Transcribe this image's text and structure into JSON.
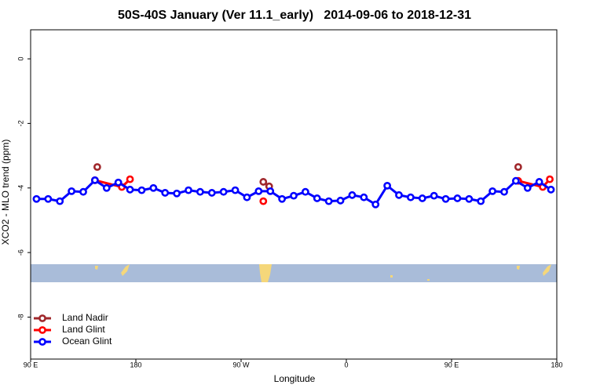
{
  "chart_data": {
    "type": "line",
    "title": "50S-40S January (Ver 11.1_early)   2014-09-06 to 2018-12-31",
    "x_label": "Longitude",
    "y_label": "XCO2 - MLO trend (ppm)",
    "xlim": [
      90,
      540
    ],
    "ylim": [
      -9.3,
      0.9
    ],
    "xticks": [
      {
        "value": 90,
        "label": "90 E"
      },
      180,
      {
        "value": 270,
        "label": "90 W"
      },
      {
        "value": 360,
        "label": "0"
      },
      {
        "value": 450,
        "label": "90 E"
      },
      {
        "value": 540,
        "label": "180"
      }
    ],
    "yticks": [
      0,
      -2,
      -4,
      -6,
      -8
    ],
    "legend_position": "bottomleft",
    "series": [
      {
        "name": "Land Nadir",
        "color": "#a0282c",
        "x": [
          147,
          200,
          289,
          294,
          450,
          507
        ],
        "values": [
          -3.35,
          null,
          -3.81,
          -3.95,
          null,
          -3.35
        ]
      },
      {
        "name": "Land Glint",
        "color": "#ff0000",
        "x": [
          145,
          168,
          175,
          230,
          289,
          400,
          507,
          528,
          534
        ],
        "values": [
          -3.76,
          -3.97,
          -3.73,
          null,
          -4.41,
          null,
          -3.78,
          -3.97,
          -3.73
        ]
      },
      {
        "name": "Ocean Glint",
        "color": "#0000ff",
        "x": [
          95,
          105,
          115,
          125,
          135,
          145,
          155,
          165,
          175,
          185,
          195,
          205,
          215,
          225,
          235,
          245,
          255,
          265,
          275,
          285,
          295,
          305,
          315,
          325,
          335,
          345,
          355,
          365,
          375,
          385,
          395,
          405,
          415,
          425,
          435,
          445,
          455,
          465,
          475,
          485,
          495,
          505,
          515,
          525,
          535
        ],
        "values": [
          -4.34,
          -4.34,
          -4.41,
          -4.1,
          -4.12,
          -3.76,
          -4.0,
          -3.83,
          -4.05,
          -4.07,
          -4.0,
          -4.15,
          -4.17,
          -4.07,
          -4.12,
          -4.15,
          -4.12,
          -4.07,
          -4.29,
          -4.1,
          -4.1,
          -4.34,
          -4.24,
          -4.12,
          -4.32,
          -4.41,
          -4.39,
          -4.22,
          -4.29,
          -4.51,
          -3.93,
          -4.22,
          -4.29,
          -4.32,
          -4.24,
          -4.34,
          -4.32,
          -4.34,
          -4.41,
          -4.1,
          -4.12,
          -3.78,
          -4.0,
          -3.81,
          -4.05
        ]
      }
    ]
  }
}
